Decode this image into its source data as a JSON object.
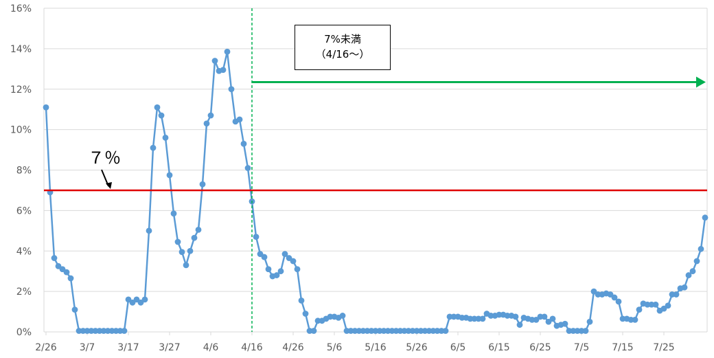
{
  "chart_data": {
    "type": "line",
    "title": "",
    "xlabel": "",
    "ylabel": "",
    "ylim": [
      0,
      16
    ],
    "y_ticks": [
      "0%",
      "2%",
      "4%",
      "6%",
      "8%",
      "10%",
      "12%",
      "14%",
      "16%"
    ],
    "x_tick_labels": [
      "2/26",
      "3/7",
      "3/17",
      "3/27",
      "4/6",
      "4/16",
      "4/26",
      "5/6",
      "5/16",
      "5/26",
      "6/5",
      "6/15",
      "6/25",
      "7/5",
      "7/15",
      "7/25"
    ],
    "x_start_date": "2/26",
    "series": [
      {
        "name": "",
        "color": "#5b9bd5",
        "values": [
          11.1,
          6.9,
          3.65,
          3.25,
          3.1,
          2.95,
          2.65,
          1.1,
          0.05,
          0.05,
          0.05,
          0.05,
          0.05,
          0.05,
          0.05,
          0.05,
          0.05,
          0.05,
          0.05,
          0.05,
          1.6,
          1.45,
          1.6,
          1.45,
          1.6,
          5.0,
          9.1,
          11.1,
          10.7,
          9.6,
          7.75,
          5.85,
          4.45,
          3.95,
          3.3,
          4.0,
          4.65,
          5.05,
          7.3,
          10.3,
          10.7,
          13.4,
          12.9,
          12.95,
          13.85,
          12.0,
          10.4,
          10.5,
          9.3,
          8.1,
          6.45,
          4.7,
          3.85,
          3.7,
          3.1,
          2.75,
          2.8,
          3.0,
          3.85,
          3.65,
          3.5,
          3.1,
          1.55,
          0.9,
          0.05,
          0.05,
          0.55,
          0.55,
          0.65,
          0.75,
          0.75,
          0.7,
          0.8,
          0.05,
          0.05,
          0.05,
          0.05,
          0.05,
          0.05,
          0.05,
          0.05,
          0.05,
          0.05,
          0.05,
          0.05,
          0.05,
          0.05,
          0.05,
          0.05,
          0.05,
          0.05,
          0.05,
          0.05,
          0.05,
          0.05,
          0.05,
          0.05,
          0.05,
          0.75,
          0.75,
          0.75,
          0.7,
          0.7,
          0.65,
          0.65,
          0.65,
          0.65,
          0.9,
          0.8,
          0.8,
          0.85,
          0.85,
          0.8,
          0.8,
          0.75,
          0.35,
          0.7,
          0.65,
          0.6,
          0.6,
          0.75,
          0.75,
          0.5,
          0.65,
          0.3,
          0.35,
          0.4,
          0.05,
          0.05,
          0.05,
          0.05,
          0.05,
          0.5,
          2.0,
          1.85,
          1.85,
          1.9,
          1.85,
          1.7,
          1.5,
          0.65,
          0.65,
          0.6,
          0.6,
          1.1,
          1.4,
          1.35,
          1.35,
          1.35,
          1.05,
          1.15,
          1.3,
          1.85,
          1.85,
          2.15,
          2.2,
          2.8,
          3.0,
          3.5,
          4.1,
          5.65
        ]
      }
    ],
    "reference_line": {
      "value": 7,
      "color": "#e00000"
    },
    "vertical_marker": {
      "at": "4/16",
      "color": "#00b050",
      "style": "dashed"
    },
    "arrow": {
      "from": "4/16",
      "color": "#00b050",
      "y_value": 12.35
    },
    "grid": true,
    "legend": "none"
  },
  "annotations": {
    "box_line1": "7%未満",
    "box_line2": "（4/16～）",
    "ref_label": "７％"
  }
}
